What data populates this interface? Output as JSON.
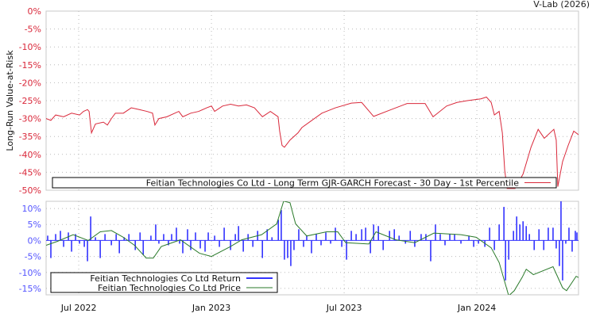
{
  "credit": "V-Lab (2026)",
  "chart_data": [
    {
      "type": "line",
      "ylabel": "Long-Run Value-at-Risk",
      "ylim": [
        -50,
        0
      ],
      "xlim": [
        2022.377,
        2024.383
      ],
      "yticks": [
        0,
        -5,
        -10,
        -15,
        -20,
        -25,
        -30,
        -35,
        -40,
        -45,
        -50
      ],
      "ytick_labels": [
        "0%",
        "-5%",
        "-10%",
        "-15%",
        "-20%",
        "-25%",
        "-30%",
        "-35%",
        "-40%",
        "-45%",
        "-50%"
      ],
      "grid": true,
      "legend_position": "bottom",
      "series": [
        {
          "name": "Feitian Technologies Co Ltd - Long Term GJR-GARCH Forecast - 30 Day - 1st Percentile",
          "color": "#d9283a",
          "points": [
            [
              2022.377,
              -30
            ],
            [
              2022.395,
              -30.5
            ],
            [
              2022.413,
              -29
            ],
            [
              2022.443,
              -29.5
            ],
            [
              2022.473,
              -28.5
            ],
            [
              2022.503,
              -29
            ],
            [
              2022.518,
              -28
            ],
            [
              2022.533,
              -27.5
            ],
            [
              2022.539,
              -28
            ],
            [
              2022.548,
              -34
            ],
            [
              2022.563,
              -31.5
            ],
            [
              2022.593,
              -31
            ],
            [
              2022.608,
              -31.8
            ],
            [
              2022.623,
              -30
            ],
            [
              2022.638,
              -28.5
            ],
            [
              2022.668,
              -28.5
            ],
            [
              2022.698,
              -27
            ],
            [
              2022.728,
              -27.5
            ],
            [
              2022.757,
              -28
            ],
            [
              2022.778,
              -28.5
            ],
            [
              2022.787,
              -31.8
            ],
            [
              2022.802,
              -30
            ],
            [
              2022.832,
              -29.5
            ],
            [
              2022.862,
              -28.5
            ],
            [
              2022.877,
              -28
            ],
            [
              2022.892,
              -29.5
            ],
            [
              2022.922,
              -28.5
            ],
            [
              2022.952,
              -28
            ],
            [
              2022.982,
              -27
            ],
            [
              2023.0,
              -26.5
            ],
            [
              2023.012,
              -28
            ],
            [
              2023.042,
              -26.5
            ],
            [
              2023.072,
              -26
            ],
            [
              2023.102,
              -26.5
            ],
            [
              2023.132,
              -26.2
            ],
            [
              2023.162,
              -27
            ],
            [
              2023.192,
              -29.5
            ],
            [
              2023.222,
              -28
            ],
            [
              2023.251,
              -29.5
            ],
            [
              2023.257,
              -33.5
            ],
            [
              2023.266,
              -37.5
            ],
            [
              2023.275,
              -38
            ],
            [
              2023.296,
              -36
            ],
            [
              2023.326,
              -34
            ],
            [
              2023.341,
              -32.5
            ],
            [
              2023.416,
              -28.5
            ],
            [
              2023.467,
              -27
            ],
            [
              2023.527,
              -25.7
            ],
            [
              2023.566,
              -25.5
            ],
            [
              2023.611,
              -29.4
            ],
            [
              2023.677,
              -27.5
            ],
            [
              2023.737,
              -25.8
            ],
            [
              2023.805,
              -25.8
            ],
            [
              2023.835,
              -29.5
            ],
            [
              2023.886,
              -26.5
            ],
            [
              2023.925,
              -25.5
            ],
            [
              2023.964,
              -25
            ],
            [
              2024.015,
              -24.5
            ],
            [
              2024.036,
              -24
            ],
            [
              2024.054,
              -25.5
            ],
            [
              2024.066,
              -29
            ],
            [
              2024.084,
              -28
            ],
            [
              2024.096,
              -34
            ],
            [
              2024.105,
              -44.5
            ],
            [
              2024.114,
              -49.5
            ],
            [
              2024.144,
              -49.5
            ],
            [
              2024.174,
              -45.5
            ],
            [
              2024.204,
              -38
            ],
            [
              2024.231,
              -33
            ],
            [
              2024.254,
              -35.5
            ],
            [
              2024.29,
              -33
            ],
            [
              2024.299,
              -36
            ],
            [
              2024.305,
              -49
            ],
            [
              2024.323,
              -42
            ],
            [
              2024.344,
              -37.5
            ],
            [
              2024.365,
              -33.5
            ],
            [
              2024.383,
              -34.5
            ]
          ]
        }
      ]
    },
    {
      "type": "bar+line",
      "ylim": [
        -17,
        12.25
      ],
      "xlim": [
        2022.377,
        2024.383
      ],
      "yticks": [
        10,
        5,
        0,
        -5,
        -10,
        -15
      ],
      "ytick_labels": [
        "10%",
        "5%",
        "0%",
        "-5%",
        "-10%",
        "-15%"
      ],
      "xticks": [
        2022.5,
        2023.0,
        2023.5,
        2024.0
      ],
      "xtick_labels": [
        "Jul 2022",
        "Jan 2023",
        "Jul 2023",
        "Jan 2024"
      ],
      "grid": true,
      "legend_position": "bottom-left",
      "series": [
        {
          "name": "Feitian Technologies Co Ltd Return",
          "color": "#3333ff",
          "points": [
            [
              2022.383,
              1.5
            ],
            [
              2022.395,
              -5.5
            ],
            [
              2022.413,
              2
            ],
            [
              2022.431,
              3
            ],
            [
              2022.443,
              -2
            ],
            [
              2022.461,
              2.5
            ],
            [
              2022.473,
              -3.5
            ],
            [
              2022.488,
              2
            ],
            [
              2022.503,
              -1
            ],
            [
              2022.521,
              -2
            ],
            [
              2022.533,
              -6.5
            ],
            [
              2022.545,
              7.5
            ],
            [
              2022.563,
              1
            ],
            [
              2022.581,
              -5.5
            ],
            [
              2022.599,
              2
            ],
            [
              2022.623,
              -1.5
            ],
            [
              2022.641,
              2
            ],
            [
              2022.653,
              -4
            ],
            [
              2022.671,
              1
            ],
            [
              2022.689,
              2
            ],
            [
              2022.713,
              -3
            ],
            [
              2022.731,
              2.5
            ],
            [
              2022.743,
              -4.5
            ],
            [
              2022.772,
              1.5
            ],
            [
              2022.79,
              5
            ],
            [
              2022.802,
              -1
            ],
            [
              2022.82,
              2
            ],
            [
              2022.838,
              -1.5
            ],
            [
              2022.85,
              2
            ],
            [
              2022.868,
              4
            ],
            [
              2022.88,
              -1
            ],
            [
              2022.892,
              -4
            ],
            [
              2022.91,
              3.5
            ],
            [
              2022.922,
              -3
            ],
            [
              2022.94,
              2.5
            ],
            [
              2022.958,
              -2.5
            ],
            [
              2022.976,
              -3.5
            ],
            [
              2022.988,
              2.5
            ],
            [
              2023.012,
              1.5
            ],
            [
              2023.03,
              -2
            ],
            [
              2023.048,
              4
            ],
            [
              2023.072,
              -3
            ],
            [
              2023.09,
              2
            ],
            [
              2023.102,
              4.5
            ],
            [
              2023.12,
              -3.5
            ],
            [
              2023.138,
              2
            ],
            [
              2023.156,
              -2
            ],
            [
              2023.174,
              3
            ],
            [
              2023.192,
              -5.5
            ],
            [
              2023.21,
              3.5
            ],
            [
              2023.228,
              1
            ],
            [
              2023.252,
              6.5
            ],
            [
              2023.263,
              9.5
            ],
            [
              2023.275,
              -6
            ],
            [
              2023.287,
              -5.5
            ],
            [
              2023.299,
              -8
            ],
            [
              2023.311,
              -3
            ],
            [
              2023.329,
              3.5
            ],
            [
              2023.347,
              -2
            ],
            [
              2023.359,
              1.5
            ],
            [
              2023.377,
              -4
            ],
            [
              2023.395,
              2
            ],
            [
              2023.413,
              -1.5
            ],
            [
              2023.431,
              2.5
            ],
            [
              2023.449,
              -1
            ],
            [
              2023.467,
              4
            ],
            [
              2023.491,
              -2
            ],
            [
              2023.509,
              -6
            ],
            [
              2023.527,
              3
            ],
            [
              2023.545,
              2
            ],
            [
              2023.566,
              3.5
            ],
            [
              2023.581,
              4
            ],
            [
              2023.599,
              -4
            ],
            [
              2023.611,
              5
            ],
            [
              2023.629,
              4.5
            ],
            [
              2023.647,
              -3
            ],
            [
              2023.671,
              3
            ],
            [
              2023.689,
              3.5
            ],
            [
              2023.707,
              1.5
            ],
            [
              2023.731,
              -1
            ],
            [
              2023.749,
              3
            ],
            [
              2023.766,
              -2
            ],
            [
              2023.79,
              2
            ],
            [
              2023.808,
              2
            ],
            [
              2023.826,
              -6.5
            ],
            [
              2023.844,
              5
            ],
            [
              2023.862,
              2
            ],
            [
              2023.88,
              -1.5
            ],
            [
              2023.898,
              2
            ],
            [
              2023.916,
              2
            ],
            [
              2023.94,
              -1
            ],
            [
              2023.97,
              1.5
            ],
            [
              2023.988,
              -2
            ],
            [
              2024.006,
              -1
            ],
            [
              2024.03,
              -2
            ],
            [
              2024.048,
              4
            ],
            [
              2024.066,
              -3
            ],
            [
              2024.084,
              5
            ],
            [
              2024.102,
              10.5
            ],
            [
              2024.108,
              -12.5
            ],
            [
              2024.12,
              -6
            ],
            [
              2024.138,
              3
            ],
            [
              2024.15,
              7.5
            ],
            [
              2024.162,
              5
            ],
            [
              2024.174,
              6
            ],
            [
              2024.186,
              4.5
            ],
            [
              2024.198,
              2
            ],
            [
              2024.216,
              -3
            ],
            [
              2024.234,
              3.5
            ],
            [
              2024.252,
              -3
            ],
            [
              2024.269,
              4
            ],
            [
              2024.287,
              4
            ],
            [
              2024.299,
              -2.5
            ],
            [
              2024.311,
              -8
            ],
            [
              2024.317,
              12.5
            ],
            [
              2024.323,
              -12.5
            ],
            [
              2024.335,
              -1
            ],
            [
              2024.347,
              4
            ],
            [
              2024.359,
              -3.5
            ],
            [
              2024.371,
              3
            ],
            [
              2024.377,
              2.5
            ]
          ]
        },
        {
          "name": "Feitian Technologies Co Ltd Price",
          "color": "#2a7a2a",
          "points": [
            [
              2022.377,
              -1.5
            ],
            [
              2022.419,
              -0.3
            ],
            [
              2022.479,
              1.8
            ],
            [
              2022.536,
              0
            ],
            [
              2022.581,
              2.7
            ],
            [
              2022.623,
              3.1
            ],
            [
              2022.668,
              1
            ],
            [
              2022.71,
              -1.5
            ],
            [
              2022.754,
              -5.5
            ],
            [
              2022.781,
              -5.5
            ],
            [
              2022.811,
              -1.9
            ],
            [
              2022.883,
              0.2
            ],
            [
              2022.955,
              -4
            ],
            [
              2023.0,
              -5
            ],
            [
              2023.072,
              -1.9
            ],
            [
              2023.114,
              0.2
            ],
            [
              2023.189,
              1.8
            ],
            [
              2023.246,
              5.2
            ],
            [
              2023.272,
              12.3
            ],
            [
              2023.296,
              11.8
            ],
            [
              2023.317,
              5.2
            ],
            [
              2023.359,
              1.4
            ],
            [
              2023.434,
              2.7
            ],
            [
              2023.476,
              2.7
            ],
            [
              2023.506,
              -0.7
            ],
            [
              2023.593,
              -1.1
            ],
            [
              2023.62,
              2.7
            ],
            [
              2023.695,
              0.2
            ],
            [
              2023.766,
              -0.7
            ],
            [
              2023.838,
              2.3
            ],
            [
              2023.94,
              1.8
            ],
            [
              2023.997,
              1
            ],
            [
              2024.054,
              -2.3
            ],
            [
              2024.084,
              -6.9
            ],
            [
              2024.12,
              -17.3
            ],
            [
              2024.141,
              -15.7
            ],
            [
              2024.171,
              -11.5
            ],
            [
              2024.186,
              -9
            ],
            [
              2024.213,
              -10.7
            ],
            [
              2024.287,
              -8.2
            ],
            [
              2024.323,
              -14.8
            ],
            [
              2024.338,
              -15.7
            ],
            [
              2024.374,
              -11.2
            ],
            [
              2024.383,
              -11.6
            ]
          ]
        }
      ]
    }
  ]
}
